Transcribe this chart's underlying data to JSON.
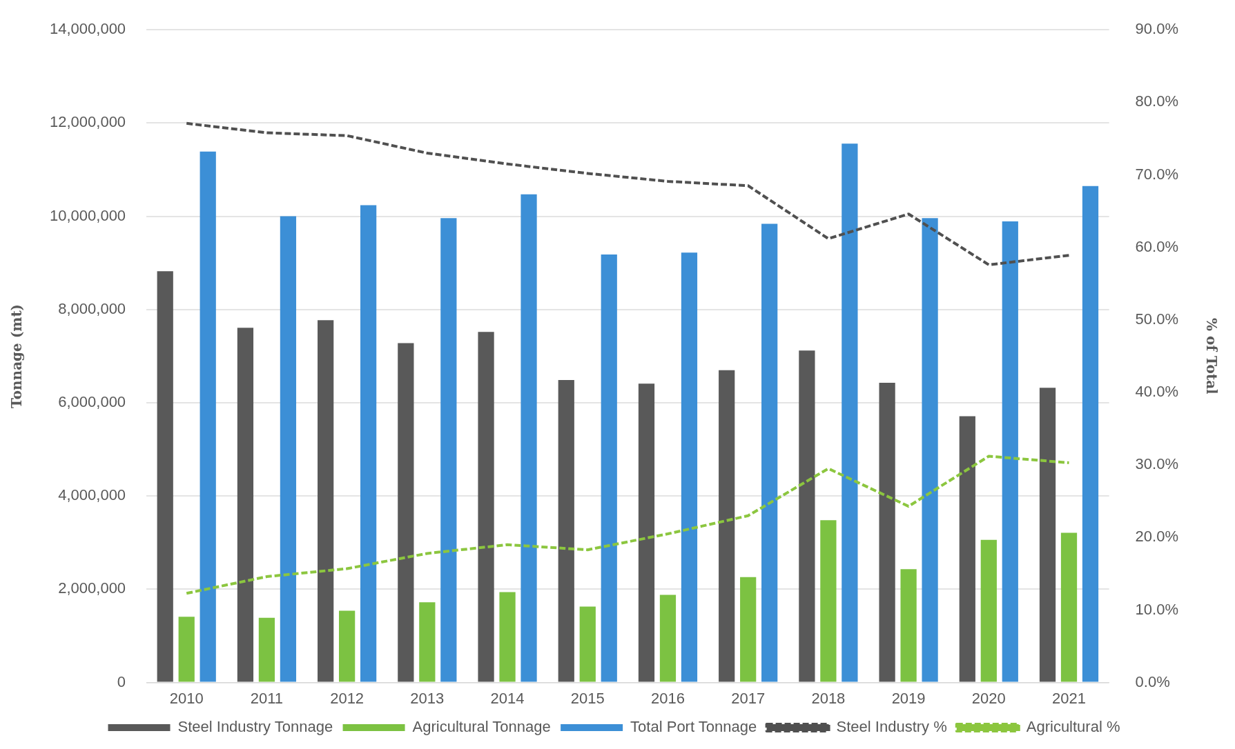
{
  "chart_data": {
    "type": "bar",
    "ylabel": "Tonnage (mt)",
    "y2label": "% of Total",
    "categories": [
      "2010",
      "2011",
      "2012",
      "2013",
      "2014",
      "2015",
      "2016",
      "2017",
      "2018",
      "2019",
      "2020",
      "2021"
    ],
    "series": [
      {
        "name": "Steel Industry Tonnage",
        "color": "#595959",
        "values": [
          8820000,
          7610000,
          7770000,
          7280000,
          7520000,
          6490000,
          6410000,
          6700000,
          7120000,
          6430000,
          5710000,
          6320000
        ]
      },
      {
        "name": "Agricultural Tonnage",
        "color": "#7cc242",
        "values": [
          1410000,
          1390000,
          1540000,
          1720000,
          1940000,
          1630000,
          1880000,
          2260000,
          3480000,
          2430000,
          3060000,
          3210000
        ]
      },
      {
        "name": "Total Port Tonnage",
        "color": "#3c8fd6",
        "values": [
          11390000,
          10000000,
          10240000,
          9960000,
          10470000,
          9180000,
          9220000,
          9840000,
          11560000,
          9960000,
          9890000,
          10650000
        ]
      },
      {
        "name": "Steel Industry %",
        "type": "line",
        "axis": "y2",
        "line_style": "dashed",
        "color": "#505050",
        "values": [
          77.1,
          75.8,
          75.4,
          73.0,
          71.5,
          70.2,
          69.1,
          68.5,
          61.2,
          64.6,
          57.6,
          58.9
        ]
      },
      {
        "name": "Agricultural %",
        "type": "line",
        "axis": "y2",
        "line_style": "dashed",
        "color": "#8cc63f",
        "values": [
          12.3,
          14.6,
          15.7,
          17.8,
          19.0,
          18.3,
          20.5,
          23.0,
          29.5,
          24.3,
          31.2,
          30.3
        ]
      }
    ],
    "ylim": [
      0,
      14000000
    ],
    "yticks": [
      0,
      {
        "value": 2000000,
        "label": "2,000,000"
      },
      {
        "value": 4000000,
        "label": "4,000,000"
      },
      {
        "value": 6000000,
        "label": "6,000,000"
      },
      {
        "value": 8000000,
        "label": "8,000,000"
      },
      {
        "value": 10000000,
        "label": "10,000,000"
      },
      {
        "value": 12000000,
        "label": "12,000,000"
      },
      {
        "value": 14000000,
        "label": "14,000,000"
      }
    ],
    "y2lim": [
      0,
      90
    ],
    "y2ticks": [
      {
        "value": 0,
        "label": "0.0%"
      },
      {
        "value": 10,
        "label": "10.0%"
      },
      {
        "value": 20,
        "label": "20.0%"
      },
      {
        "value": 30,
        "label": "30.0%"
      },
      {
        "value": 40,
        "label": "40.0%"
      },
      {
        "value": 50,
        "label": "50.0%"
      },
      {
        "value": 60,
        "label": "60.0%"
      },
      {
        "value": 70,
        "label": "70.0%"
      },
      {
        "value": 80,
        "label": "80.0%"
      },
      {
        "value": 90,
        "label": "90.0%"
      }
    ],
    "grid": "y",
    "legend": "bottom",
    "marker": "none"
  }
}
